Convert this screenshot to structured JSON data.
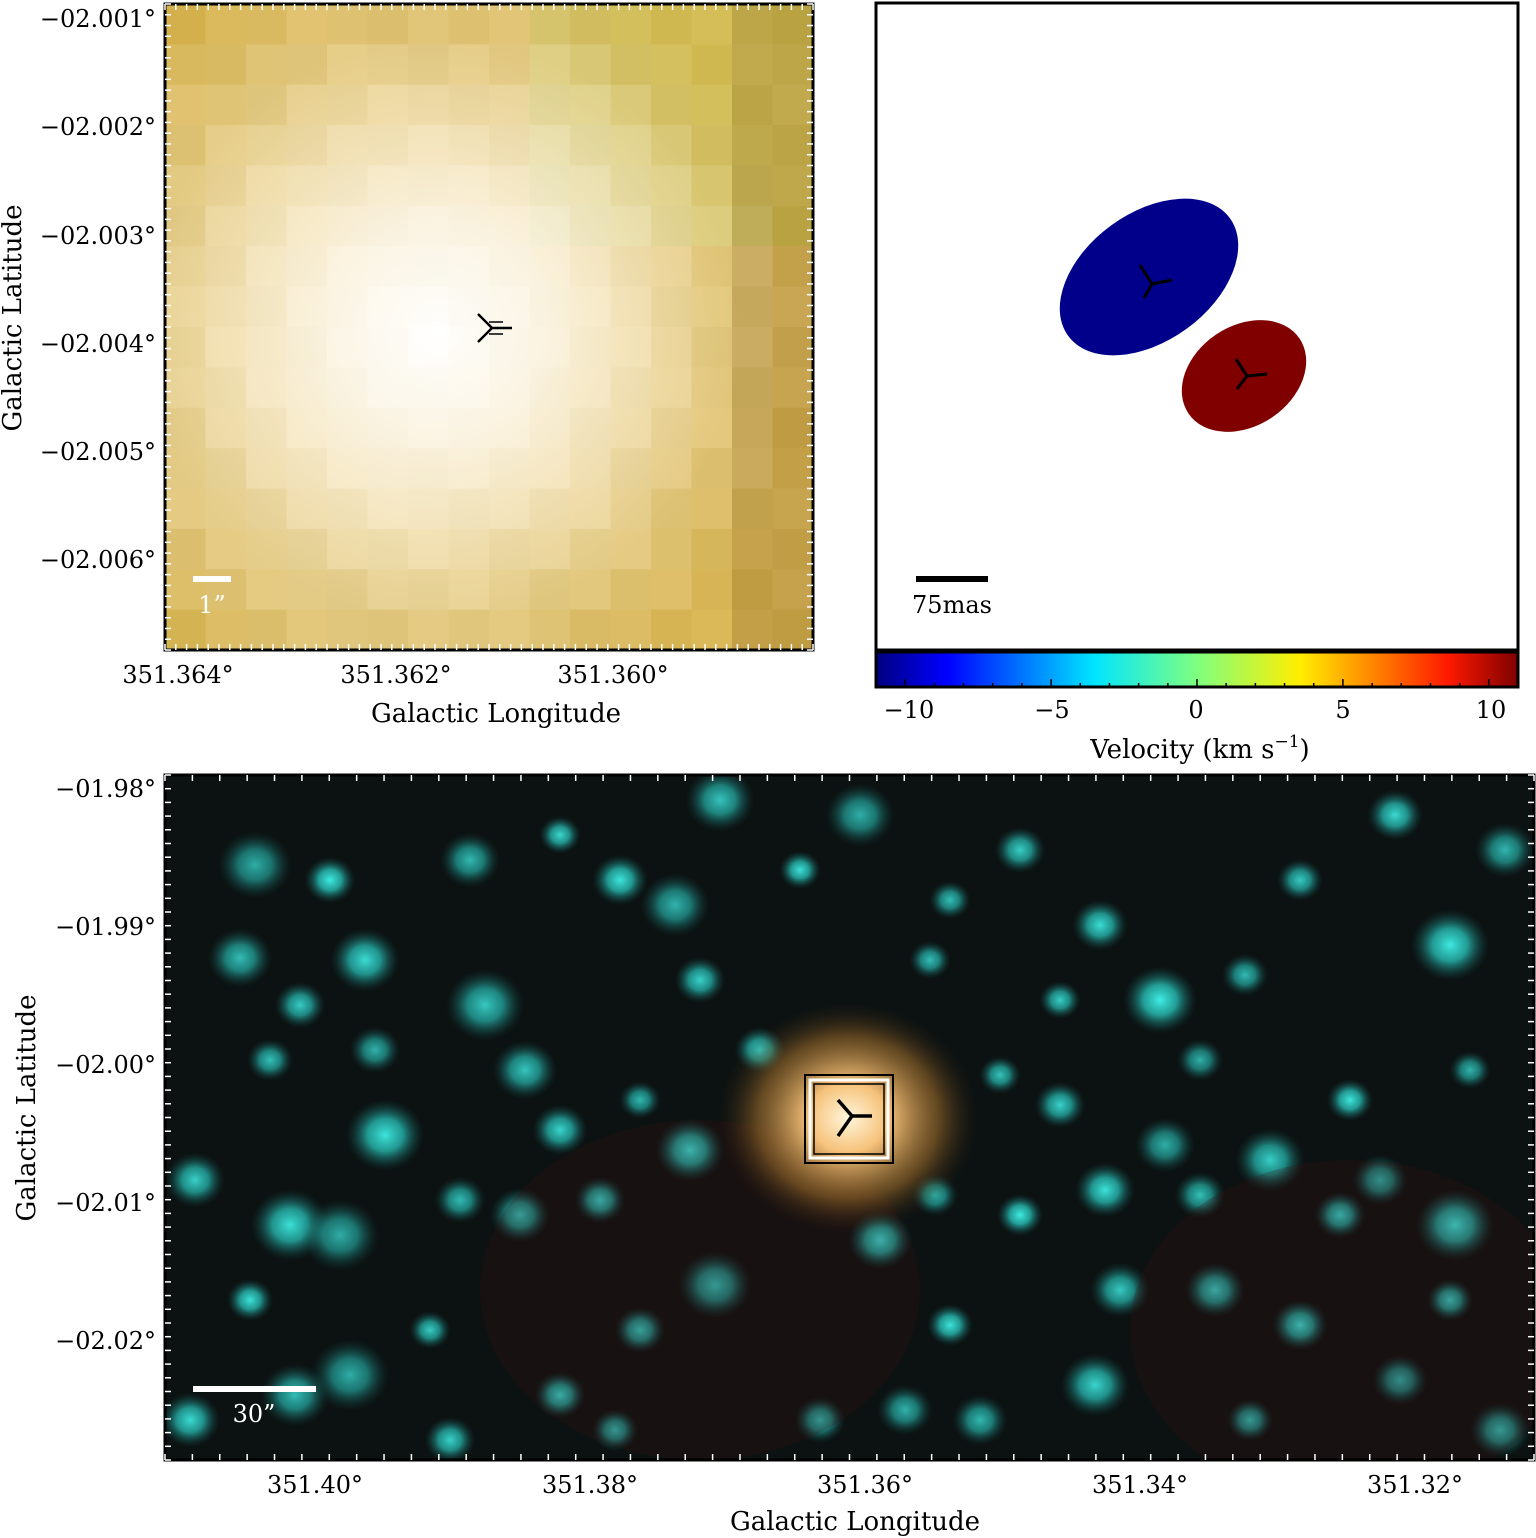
{
  "panel_a": {
    "y_axis_label": "Galactic Latitude",
    "x_axis_label": "Galactic Longitude",
    "y_ticks": [
      "−02.001°",
      "−02.002°",
      "−02.003°",
      "−02.004°",
      "−02.005°",
      "−02.006°"
    ],
    "x_ticks": [
      "351.364°",
      "351.362°",
      "351.360°"
    ],
    "scale_bar_label": "1”",
    "scale_bar_color": "#ffffff"
  },
  "panel_b": {
    "scale_bar_label": "75mas",
    "colorbar_label": "Velocity (km s",
    "colorbar_label_exp": "−1",
    "colorbar_label_close": ")",
    "colorbar_ticks": [
      "−10",
      "−5",
      "0",
      "5",
      "10"
    ],
    "colorbar_range": [
      -11,
      11
    ],
    "colormap": "jet",
    "components": [
      {
        "velocity": -10,
        "color": "#00008b",
        "marker": "tri-marker-icon"
      },
      {
        "velocity": 10,
        "color": "#800000",
        "marker": "tri-marker-icon"
      }
    ]
  },
  "panel_c": {
    "y_axis_label": "Galactic Latitude",
    "x_axis_label": "Galactic Longitude",
    "y_ticks": [
      "−01.98°",
      "−01.99°",
      "−02.00°",
      "−02.01°",
      "−02.02°"
    ],
    "x_ticks": [
      "351.40°",
      "351.38°",
      "351.36°",
      "351.34°",
      "351.32°"
    ],
    "scale_bar_label": "30”",
    "background_color": "#0b0606",
    "star_color": "#2fe0d8",
    "source_glow_color": "#f6c27a"
  }
}
